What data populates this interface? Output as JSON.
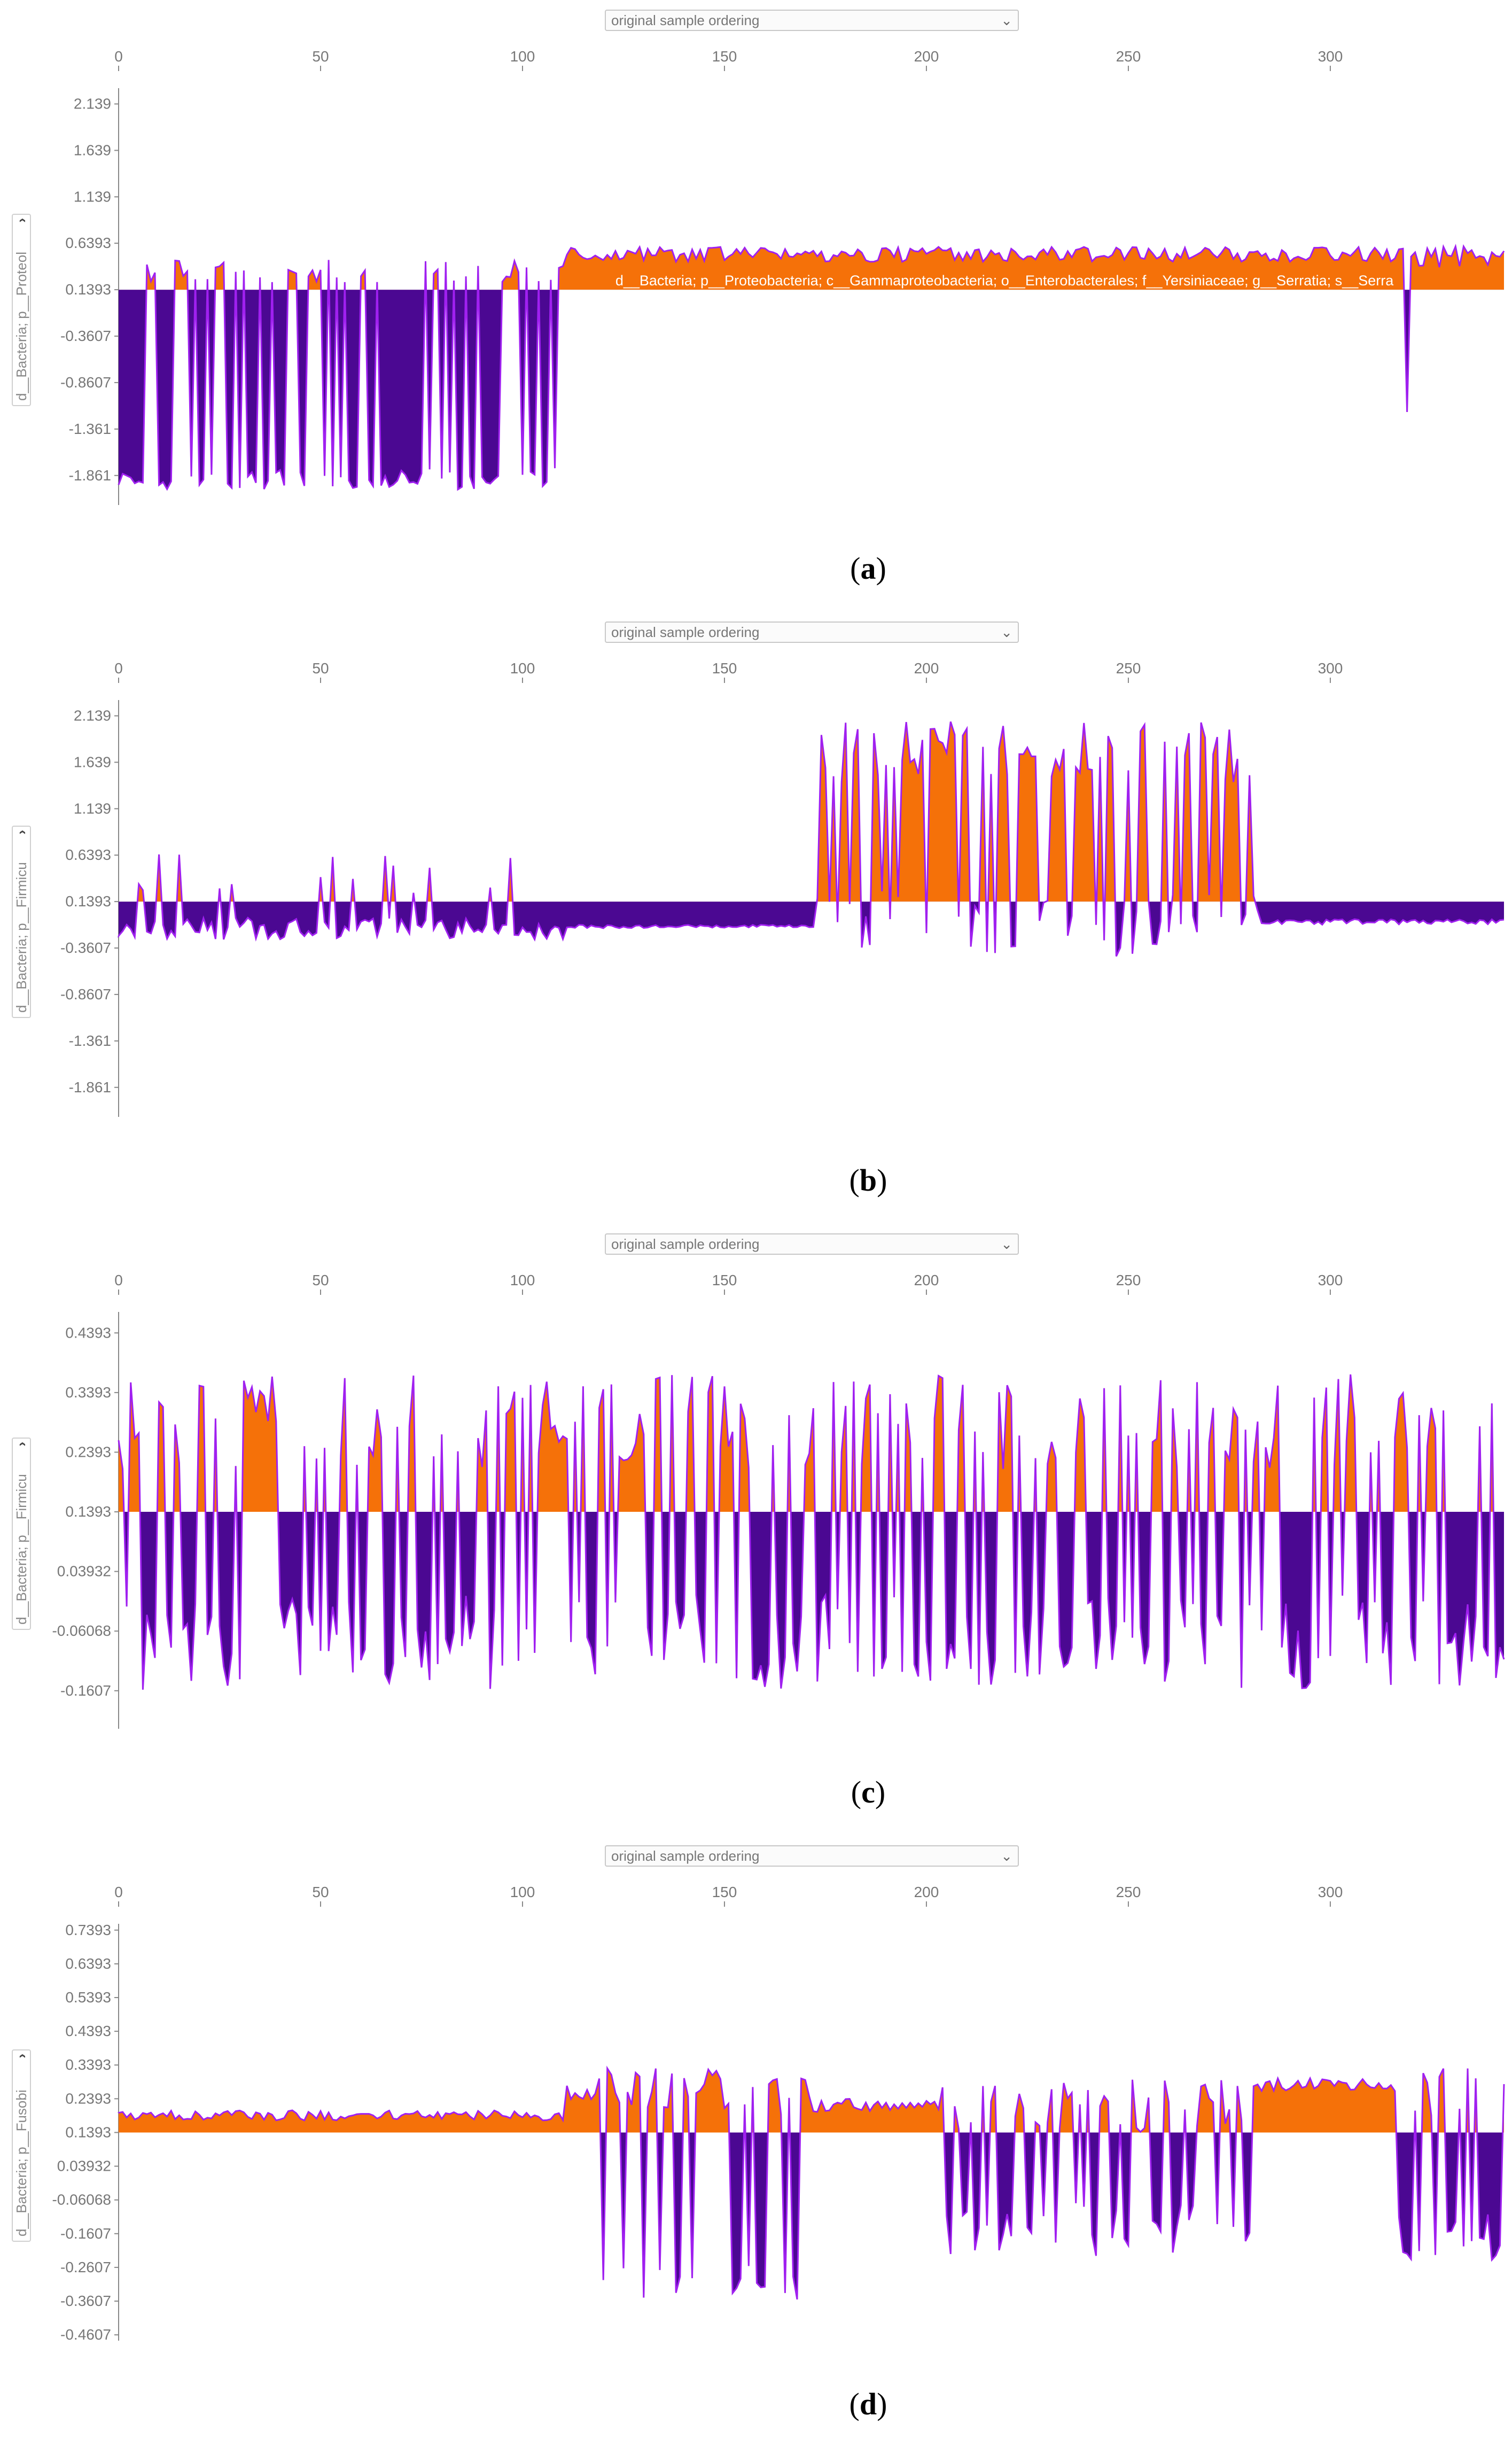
{
  "chart_data": [
    {
      "type": "area",
      "panel": "a",
      "ordering_select": "original sample ordering",
      "feature_select": "d__Bacteria; p__Proteol",
      "feature_label": "d__Bacteria; p__Proteobacteria; c__Gammaproteobacteria; o__Enterobacterales; f__Yersiniaceae; g__Serratia; s__Serra",
      "x_ticks": [
        "0",
        "50",
        "100",
        "150",
        "200",
        "250",
        "300"
      ],
      "y_ticks": [
        "2.139",
        "1.639",
        "1.139",
        "0.6393",
        "0.1393",
        "-0.3607",
        "-0.8607",
        "-1.361",
        "-1.861"
      ],
      "xlim": [
        0,
        343
      ],
      "ylim": [
        -2.15,
        2.28
      ],
      "baseline": 0.1393,
      "colors": {
        "positive": "#f57109",
        "negative": "#4b0892",
        "line": "#a020f0"
      },
      "caption": "a",
      "segments": [
        {
          "x0": 0,
          "x1": 110,
          "mode": "bimodal",
          "high": 0.34,
          "low": -1.9,
          "amp": 0.12
        },
        {
          "x0": 110,
          "x1": 318,
          "mode": "flat",
          "level": 0.52,
          "amp": 0.08
        },
        {
          "x0": 318,
          "x1": 321,
          "mode": "bimodal",
          "high": 0.4,
          "low": -1.25,
          "amp": 0.15
        },
        {
          "x0": 321,
          "x1": 343,
          "mode": "flat",
          "level": 0.5,
          "amp": 0.12
        }
      ]
    },
    {
      "type": "area",
      "panel": "b",
      "ordering_select": "original sample ordering",
      "feature_select": "d__Bacteria; p__Firmicu",
      "x_ticks": [
        "0",
        "50",
        "100",
        "150",
        "200",
        "250",
        "300"
      ],
      "y_ticks": [
        "2.139",
        "1.639",
        "1.139",
        "0.6393",
        "0.1393",
        "-0.3607",
        "-0.8607",
        "-1.361",
        "-1.861"
      ],
      "xlim": [
        0,
        343
      ],
      "ylim": [
        -2.15,
        2.28
      ],
      "baseline": 0.1393,
      "colors": {
        "positive": "#f57109",
        "negative": "#4b0892",
        "line": "#a020f0"
      },
      "caption": "b",
      "segments": [
        {
          "x0": 0,
          "x1": 110,
          "mode": "spiky",
          "level": -0.15,
          "amp": 0.12,
          "spike": 0.55
        },
        {
          "x0": 110,
          "x1": 172,
          "mode": "flat",
          "level": -0.13,
          "amp": 0.02
        },
        {
          "x0": 172,
          "x1": 282,
          "mode": "bimodal",
          "high": 1.75,
          "low": -0.1,
          "amp": 0.35
        },
        {
          "x0": 282,
          "x1": 343,
          "mode": "flat",
          "level": -0.08,
          "amp": 0.03
        }
      ]
    },
    {
      "type": "area",
      "panel": "c",
      "ordering_select": "original sample ordering",
      "feature_select": "d__Bacteria; p__Firmicu",
      "x_ticks": [
        "0",
        "50",
        "100",
        "150",
        "200",
        "250",
        "300"
      ],
      "y_ticks": [
        "0.4393",
        "0.3393",
        "0.2393",
        "0.1393",
        "0.03932",
        "-0.06068",
        "-0.1607"
      ],
      "xlim": [
        0,
        343
      ],
      "ylim": [
        -0.22,
        0.47
      ],
      "baseline": 0.1393,
      "colors": {
        "positive": "#f57109",
        "negative": "#4b0892",
        "line": "#a020f0"
      },
      "caption": "c",
      "segments": [
        {
          "x0": 0,
          "x1": 343,
          "mode": "bimodal",
          "high": 0.29,
          "low": -0.08,
          "amp": 0.08
        }
      ]
    },
    {
      "type": "area",
      "panel": "d",
      "ordering_select": "original sample ordering",
      "feature_select": "d__Bacteria; p__Fusobi",
      "x_ticks": [
        "0",
        "50",
        "100",
        "150",
        "200",
        "250",
        "300"
      ],
      "y_ticks": [
        "0.7393",
        "0.6393",
        "0.5393",
        "0.4393",
        "0.3393",
        "0.2393",
        "0.1393",
        "0.03932",
        "-0.06068",
        "-0.1607",
        "-0.2607",
        "-0.3607",
        "-0.4607"
      ],
      "xlim": [
        0,
        343
      ],
      "ylim": [
        -0.47,
        0.75
      ],
      "baseline": 0.1393,
      "colors": {
        "positive": "#f57109",
        "negative": "#4b0892",
        "line": "#a020f0"
      },
      "caption": "d",
      "segments": [
        {
          "x0": 0,
          "x1": 110,
          "mode": "flat",
          "level": 0.19,
          "amp": 0.015
        },
        {
          "x0": 110,
          "x1": 118,
          "mode": "flat",
          "level": 0.26,
          "amp": 0.03
        },
        {
          "x0": 118,
          "x1": 171,
          "mode": "bimodal",
          "high": 0.26,
          "low": -0.3,
          "amp": 0.07
        },
        {
          "x0": 171,
          "x1": 203,
          "mode": "flat",
          "level": 0.22,
          "amp": 0.02
        },
        {
          "x0": 203,
          "x1": 280,
          "mode": "bimodal",
          "high": 0.22,
          "low": -0.15,
          "amp": 0.08
        },
        {
          "x0": 280,
          "x1": 316,
          "mode": "flat",
          "level": 0.28,
          "amp": 0.02
        },
        {
          "x0": 316,
          "x1": 343,
          "mode": "bimodal",
          "high": 0.26,
          "low": -0.17,
          "amp": 0.07
        }
      ]
    }
  ]
}
